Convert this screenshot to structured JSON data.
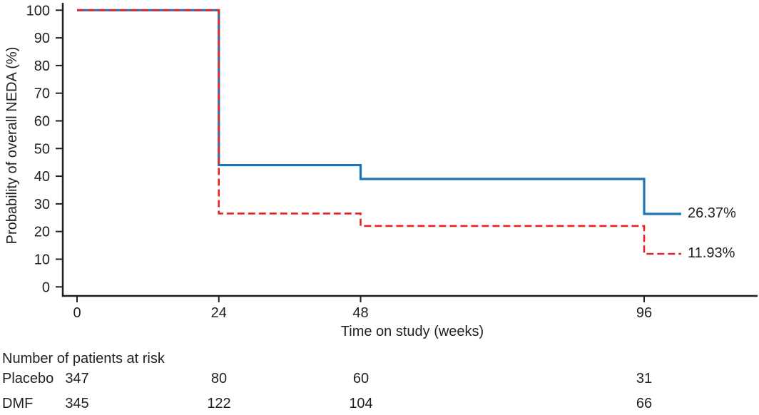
{
  "figure": {
    "background": "#ffffff",
    "text_color": "#1f1f1f",
    "axis_color": "#1f1f1f"
  },
  "chart_data": {
    "type": "line",
    "subtype": "kaplan-meier-step",
    "title": "",
    "xlabel": "Time on study (weeks)",
    "ylabel": "Probability of overall NEDA (%)",
    "x_ticks": [
      0,
      24,
      48,
      96
    ],
    "y_ticks": [
      100,
      90,
      80,
      70,
      60,
      50,
      40,
      30,
      20,
      10,
      0
    ],
    "xlim": [
      0,
      102
    ],
    "ylim": [
      0,
      100
    ],
    "grid": false,
    "legend": "none",
    "series": [
      {
        "name": "blue-solid",
        "line_style": "solid",
        "color": "#1b75bb",
        "stroke_width": 3.2,
        "step_x_weeks": [
          0,
          24,
          48,
          96
        ],
        "step_y_percent": [
          100,
          44,
          39,
          26.37
        ],
        "end_label": "26.37%"
      },
      {
        "name": "red-dashed",
        "line_style": "dashed",
        "color": "#e52322",
        "stroke_width": 2.6,
        "step_x_weeks": [
          0,
          24,
          48,
          96
        ],
        "step_y_percent": [
          100,
          26.5,
          22,
          11.93
        ],
        "end_label": "11.93%"
      }
    ],
    "at_risk_table": {
      "title": "Number of patients at risk",
      "time_points": [
        0,
        24,
        48,
        96
      ],
      "rows": [
        {
          "label": "Placebo",
          "values": [
            "347",
            "80",
            "60",
            "31"
          ]
        },
        {
          "label": "DMF",
          "values": [
            "345",
            "122",
            "104",
            "66"
          ]
        }
      ]
    }
  }
}
